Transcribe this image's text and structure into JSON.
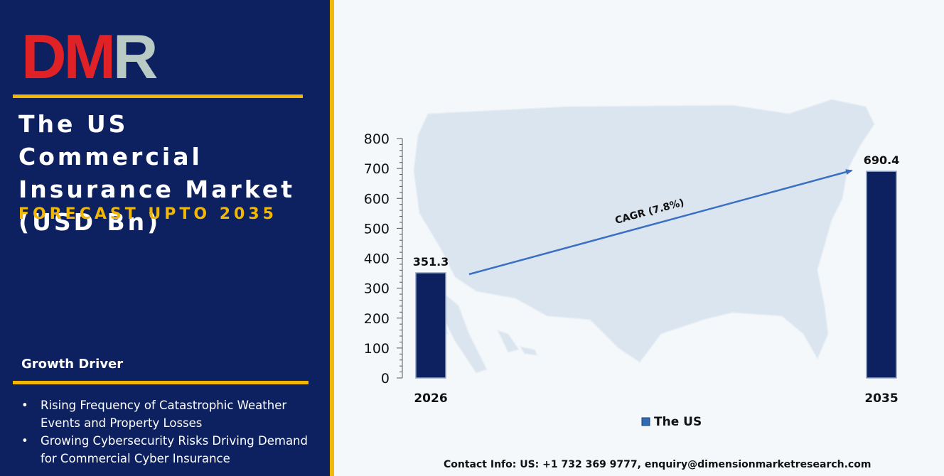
{
  "brand": {
    "logo_text": "DMR",
    "logo_letters": [
      "D",
      "M",
      "R"
    ]
  },
  "header": {
    "title_lines": [
      "The US Commercial",
      "Insurance Market",
      "(USD Bn)"
    ],
    "subtitle": "FORECAST UPTO 2035"
  },
  "growth_driver": {
    "heading": "Growth Driver",
    "items": [
      "Rising Frequency of Catastrophic Weather Events and Property Losses",
      "Growing Cybersecurity Risks Driving Demand for Commercial Cyber Insurance"
    ]
  },
  "chart_data": {
    "type": "bar",
    "categories": [
      "2026",
      "2035"
    ],
    "series": [
      {
        "name": "The US",
        "values": [
          351.3,
          690.4
        ]
      }
    ],
    "data_labels": [
      "351.3",
      "690.4"
    ],
    "yticks": [
      "0",
      "100",
      "200",
      "300",
      "400",
      "500",
      "600",
      "700",
      "800"
    ],
    "ylim": [
      0,
      800
    ],
    "annotation": "CAGR (7.8%)",
    "legend_position": "bottom",
    "grid": false,
    "bar_color": "#0d2160",
    "arrow_color": "#3b6fc4"
  },
  "footer": {
    "contact": "Contact Info: US: +1 732 369 9777, enquiry@dimensionmarketresearch.com"
  }
}
